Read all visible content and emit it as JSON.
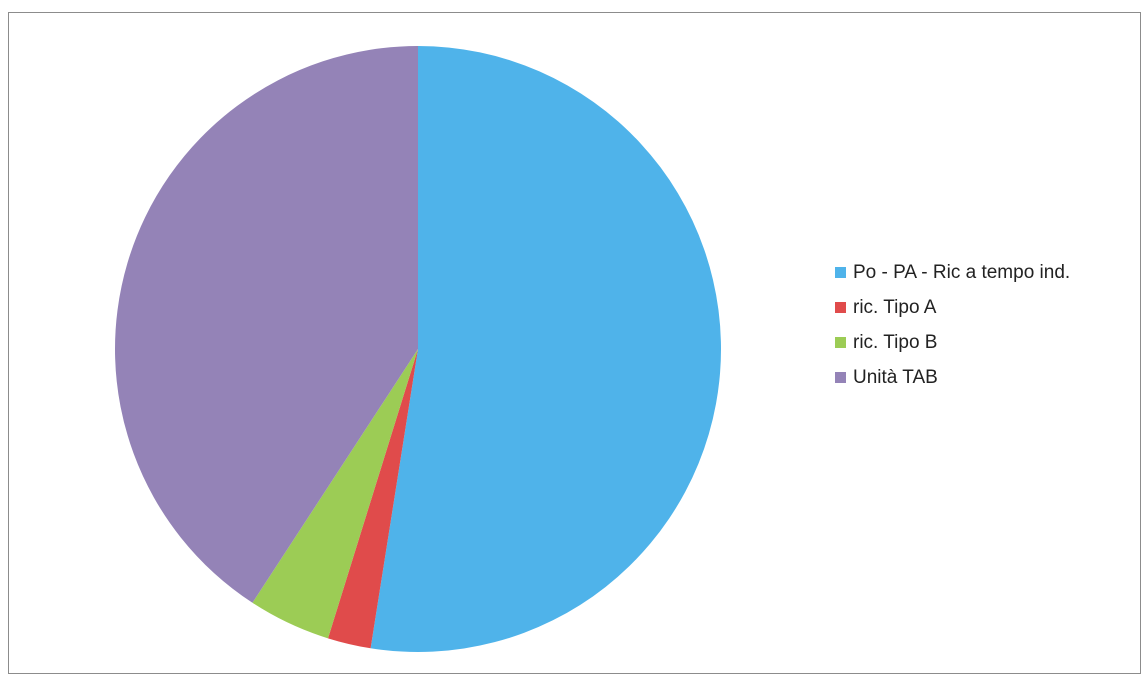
{
  "chart_data": {
    "type": "pie",
    "title": "",
    "categories": [
      "Po - PA - Ric a tempo ind.",
      "ric. Tipo A",
      "ric. Tipo B",
      "Unità TAB"
    ],
    "values": [
      52.5,
      2.3,
      4.4,
      40.8
    ],
    "colors": [
      "#4fb3ea",
      "#e04b4b",
      "#9ccc55",
      "#9483b7"
    ],
    "start_angle_deg": 0,
    "direction": "clockwise",
    "legend_position": "right"
  }
}
